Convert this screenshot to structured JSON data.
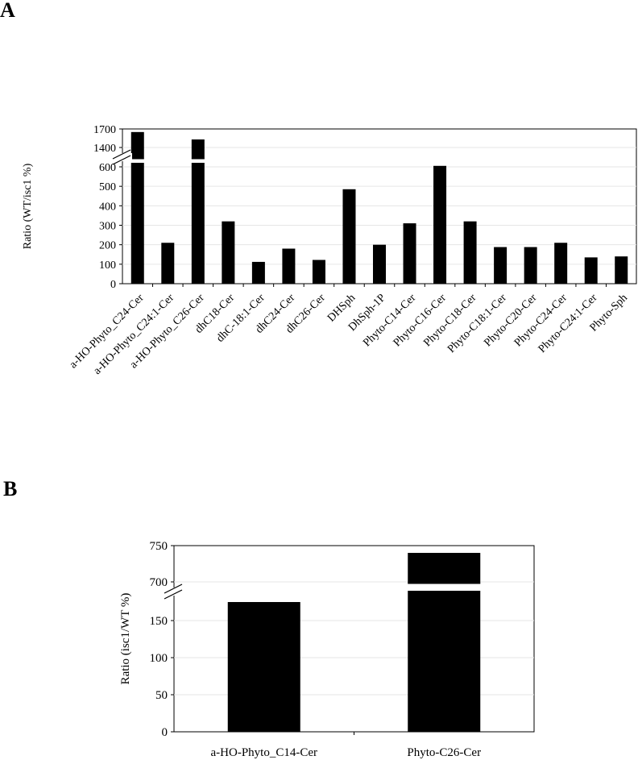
{
  "panels": {
    "a": "A",
    "b": "B"
  },
  "chart_data": [
    {
      "type": "bar",
      "panel": "A",
      "ylabel": "Ratio (WT/isc1 %)",
      "xlabel": "",
      "axis_break": {
        "lower_max": 650,
        "upper_min": 1300
      },
      "yticks_lower": [
        0,
        100,
        200,
        300,
        400,
        500,
        600
      ],
      "yticks_upper": [
        1400,
        1700
      ],
      "ylim": [
        0,
        1700
      ],
      "grid": true,
      "categories": [
        "a-HO-Phyto_C24-Cer",
        "a-HO-Phyto_C24:1-Cer",
        "a-HO-Phyto_C26-Cer",
        "dhC18-Cer",
        "dhC-18:1-Cer",
        "dhC24-Cer",
        "dhC26-Cer",
        "DHSph",
        "DhSph-1P",
        "Phyto-C14-Cer",
        "Phyto-C16-Cer",
        "Phyto-C18-Cer",
        "Phyto-C18:1-Cer",
        "Phyto-C20-Cer",
        "Phyto-C24-Cer",
        "Phyto-C24:1-Cer",
        "Phyto-Sph"
      ],
      "values": [
        1650,
        210,
        1530,
        320,
        112,
        180,
        122,
        485,
        200,
        310,
        605,
        320,
        188,
        188,
        210,
        135,
        140
      ],
      "bar_color": "#000000"
    },
    {
      "type": "bar",
      "panel": "B",
      "ylabel": "Ratio (isc1/WT %)",
      "xlabel": "",
      "axis_break": {
        "lower_max": 185,
        "upper_min": 695
      },
      "yticks_lower": [
        0,
        50,
        100,
        150
      ],
      "yticks_upper": [
        700,
        750
      ],
      "ylim": [
        0,
        750
      ],
      "grid": true,
      "categories": [
        "a-HO-Phyto_C14-Cer",
        "Phyto-C26-Cer"
      ],
      "values": [
        175,
        740
      ],
      "bar_color": "#000000"
    }
  ]
}
